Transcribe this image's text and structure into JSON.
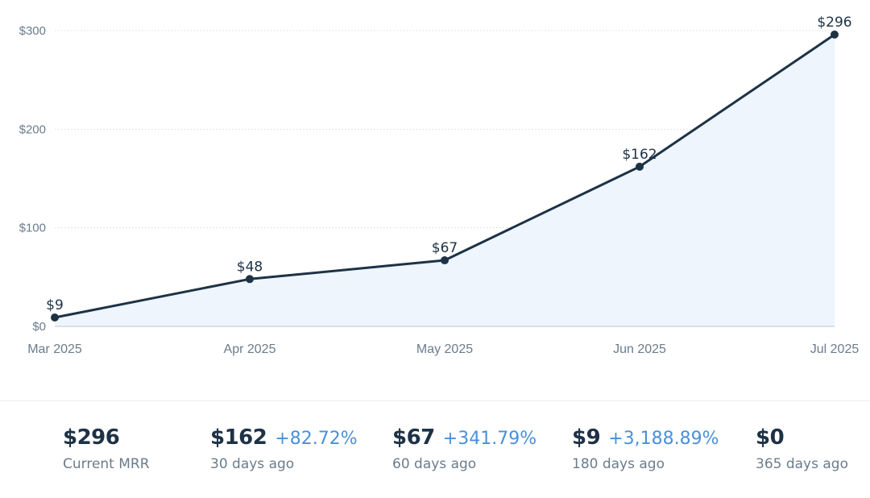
{
  "chart_data": {
    "type": "area",
    "categories": [
      "Mar 2025",
      "Apr 2025",
      "May 2025",
      "Jun 2025",
      "Jul 2025"
    ],
    "values": [
      9,
      48,
      67,
      162,
      296
    ],
    "data_labels": [
      "$9",
      "$48",
      "$67",
      "$162",
      "$296"
    ],
    "y_ticks": [
      0,
      100,
      200,
      300
    ],
    "y_tick_labels": [
      "$0",
      "$100",
      "$200",
      "$300"
    ],
    "ylim": [
      0,
      300
    ],
    "grid": true,
    "title": "",
    "xlabel": "",
    "ylabel": "",
    "colors": {
      "line": "#1e3246",
      "fill": "#eef5fd",
      "point": "#1e3246"
    }
  },
  "stats": [
    {
      "value": "$296",
      "change": "",
      "label": "Current MRR"
    },
    {
      "value": "$162",
      "change": "+82.72%",
      "label": "30 days ago"
    },
    {
      "value": "$67",
      "change": "+341.79%",
      "label": "60 days ago"
    },
    {
      "value": "$9",
      "change": "+3,188.89%",
      "label": "180 days ago"
    },
    {
      "value": "$0",
      "change": "",
      "label": "365 days ago"
    }
  ]
}
